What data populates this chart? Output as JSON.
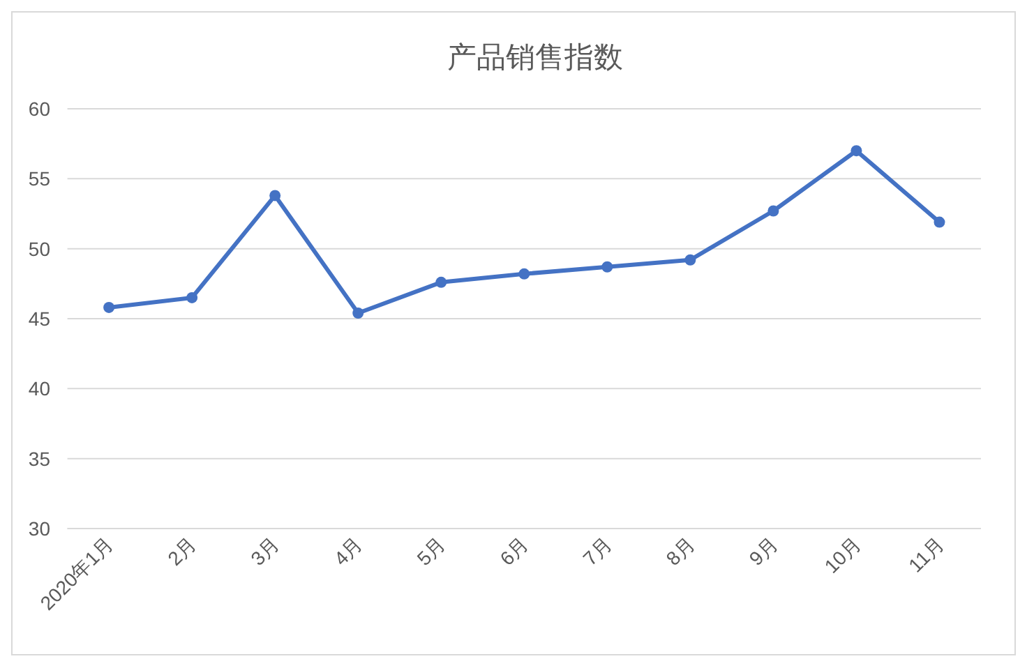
{
  "chart_data": {
    "type": "line",
    "title": "产品销售指数",
    "categories": [
      "2020年1月",
      "2月",
      "3月",
      "4月",
      "5月",
      "6月",
      "7月",
      "8月",
      "9月",
      "10月",
      "11月"
    ],
    "series": [
      {
        "color": "#4472c4",
        "values": [
          45.8,
          46.5,
          53.8,
          45.4,
          47.6,
          48.2,
          48.7,
          49.2,
          52.7,
          57.0,
          51.9
        ]
      }
    ],
    "ylim": [
      30,
      60
    ],
    "yticks": [
      30,
      35,
      40,
      45,
      50,
      55,
      60
    ],
    "grid": "y",
    "marker": "circle",
    "line_style": "solid"
  }
}
